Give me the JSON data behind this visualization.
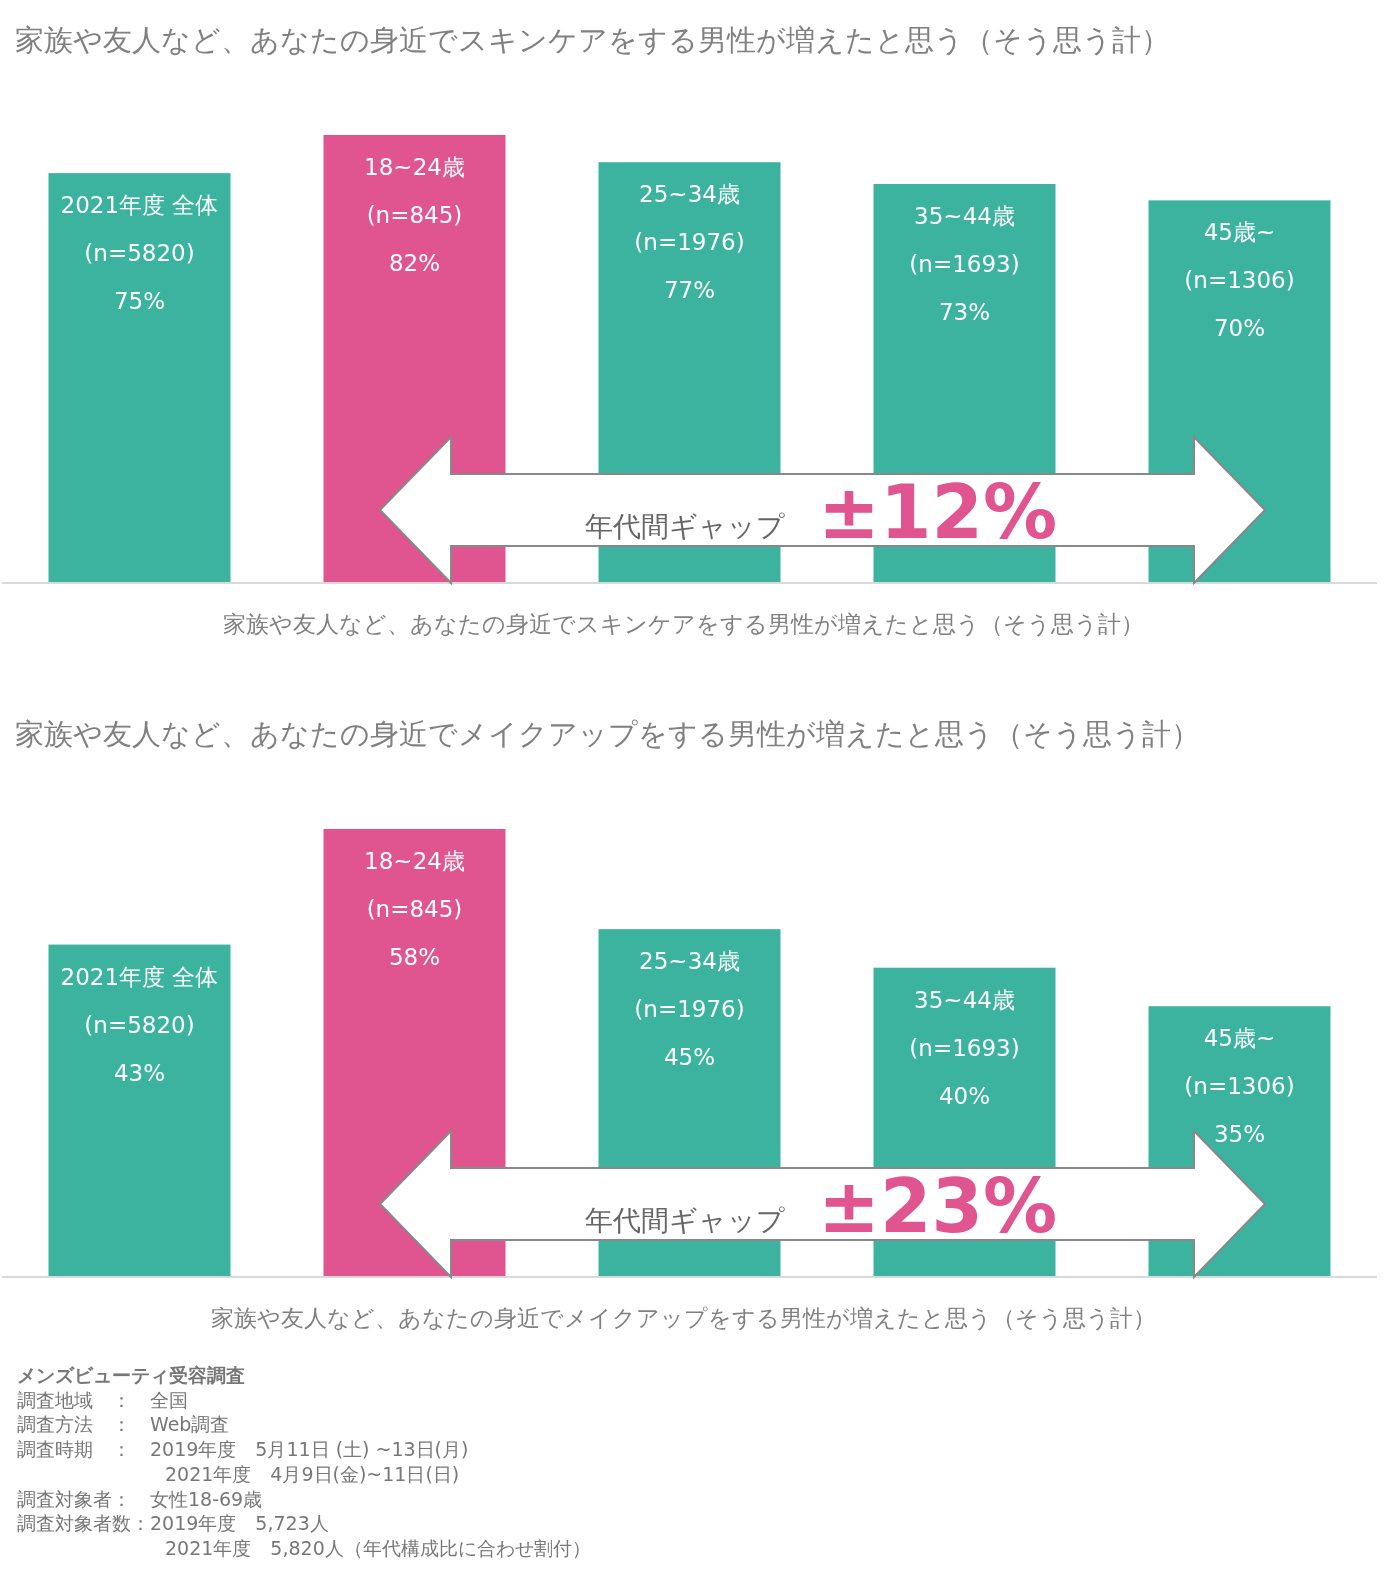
{
  "chart_data": [
    {
      "type": "bar",
      "title": "家族や友人など、あなたの身近でスキンケアをする男性が増えたと思う（そう思う計）",
      "xlabel": "家族や友人など、あなたの身近でスキンケアをする男性が増えたと思う（そう思う計）",
      "categories": [
        "2021年度 全体 (n=5820)",
        "18~24歳 (n=845)",
        "25~34歳 (n=1976)",
        "35~44歳 (n=1693)",
        "45歳~ (n=1306)"
      ],
      "values": [
        75,
        82,
        77,
        73,
        70
      ],
      "value_labels": [
        "75%",
        "82%",
        "77%",
        "73%",
        "70%"
      ],
      "colors": [
        "#3bb39f",
        "#e0548f",
        "#3bb39f",
        "#3bb39f",
        "#3bb39f"
      ],
      "annotations": [
        "年代間ギャップ",
        "±12%"
      ]
    },
    {
      "type": "bar",
      "title": "家族や友人など、あなたの身近でメイクアップをする男性が増えたと思う（そう思う計）",
      "xlabel": "家族や友人など、あなたの身近でメイクアップをする男性が増えたと思う（そう思う計）",
      "categories": [
        "2021年度 全体 (n=5820)",
        "18~24歳 (n=845)",
        "25~34歳 (n=1976)",
        "35~44歳 (n=1693)",
        "45歳~ (n=1306)"
      ],
      "values": [
        43,
        58,
        45,
        40,
        35
      ],
      "value_labels": [
        "43%",
        "58%",
        "45%",
        "40%",
        "35%"
      ],
      "colors": [
        "#3bb39f",
        "#e0548f",
        "#3bb39f",
        "#3bb39f",
        "#3bb39f"
      ],
      "annotations": [
        "年代間ギャップ",
        "±23%"
      ]
    },
    {
      "type": "other",
      "title": "メンズビューティ受容調査",
      "annotations": [
        "調査地域　：　全国",
        "調査方法　：　Web調査",
        "調査時期　：　2019年度　5月11日 (土) ~13日(月)",
        "2021年度　4月9日(金)~11日(日)",
        "調査対象者：　女性18-69歳",
        "調査対象者数：2019年度　5,723人",
        "2021年度　5,820人（年代構成比に合わせ割付）"
      ]
    }
  ]
}
